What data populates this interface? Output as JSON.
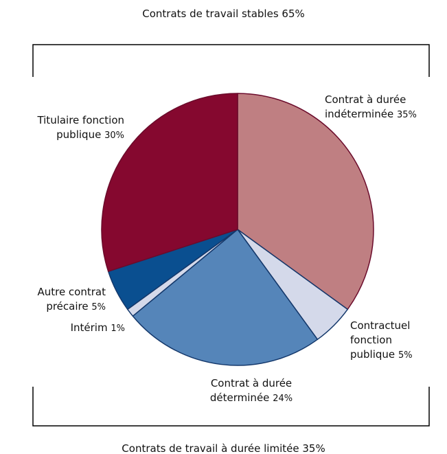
{
  "chart_data": {
    "type": "pie",
    "categories": [
      "Contrat à durée indéterminée",
      "Contractuel fonction publique",
      "Contrat à durée déterminée",
      "Intérim",
      "Autre contrat précaire",
      "Titulaire fonction publique"
    ],
    "values": [
      35,
      5,
      24,
      1,
      5,
      30
    ],
    "value_labels": [
      "35%",
      "5%",
      "24%",
      "1%",
      "5%",
      "30%"
    ],
    "colors": [
      "#bf7f82",
      "#d4d9ea",
      "#5585b9",
      "#d4d9ea",
      "#0a4f90",
      "#85082f"
    ],
    "edgecolors": [
      "#6b0b2b",
      "#14386b",
      "#14386b",
      "#14386b",
      "#14386b",
      "#6b0b2b"
    ],
    "annotations": [
      "Contrats de travail stables 65%",
      "Contrats de travail à durée limitée 35%"
    ]
  }
}
